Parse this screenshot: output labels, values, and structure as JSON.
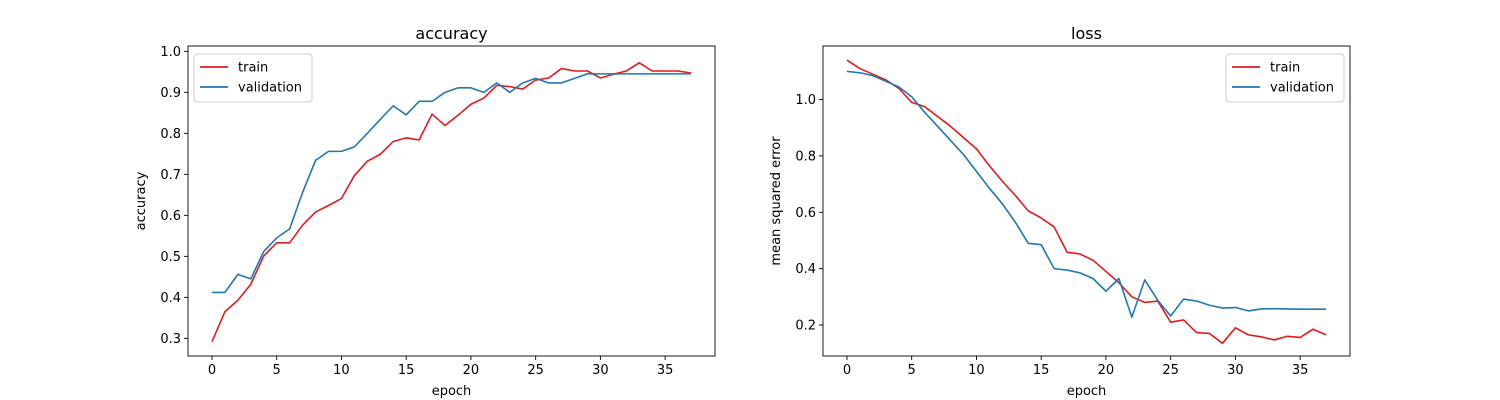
{
  "chart_data": [
    {
      "type": "line",
      "title": "accuracy",
      "xlabel": "epoch",
      "ylabel": "accuracy",
      "xlim": [
        -1.85,
        38.85
      ],
      "ylim": [
        0.257,
        1.013
      ],
      "xticks": [
        0,
        5,
        10,
        15,
        20,
        25,
        30,
        35
      ],
      "yticks": [
        0.3,
        0.4,
        0.5,
        0.6,
        0.7,
        0.8,
        0.9,
        1.0
      ],
      "ytick_labels": [
        "0.3",
        "0.4",
        "0.5",
        "0.6",
        "0.7",
        "0.8",
        "0.9",
        "1.0"
      ],
      "legend_loc": "upper-left",
      "series": [
        {
          "name": "train",
          "color": "#e31a1c",
          "values": [
            0.292,
            0.365,
            0.393,
            0.432,
            0.501,
            0.533,
            0.533,
            0.576,
            0.608,
            0.624,
            0.641,
            0.697,
            0.732,
            0.749,
            0.78,
            0.789,
            0.784,
            0.847,
            0.819,
            0.844,
            0.871,
            0.886,
            0.917,
            0.914,
            0.908,
            0.93,
            0.935,
            0.958,
            0.952,
            0.952,
            0.935,
            0.944,
            0.952,
            0.972,
            0.952,
            0.952,
            0.952,
            0.947
          ]
        },
        {
          "name": "validation",
          "color": "#1f77b4",
          "values": [
            0.412,
            0.412,
            0.456,
            0.445,
            0.512,
            0.545,
            0.567,
            0.656,
            0.734,
            0.756,
            0.756,
            0.767,
            0.8,
            0.834,
            0.867,
            0.845,
            0.878,
            0.878,
            0.9,
            0.911,
            0.911,
            0.9,
            0.923,
            0.9,
            0.923,
            0.934,
            0.923,
            0.923,
            0.934,
            0.945,
            0.945,
            0.945,
            0.945,
            0.945,
            0.945,
            0.945,
            0.945,
            0.945
          ]
        }
      ]
    },
    {
      "type": "line",
      "title": "loss",
      "xlabel": "epoch",
      "ylabel": "mean squared error",
      "xlim": [
        -1.85,
        38.85
      ],
      "ylim": [
        0.09,
        1.19
      ],
      "xticks": [
        0,
        5,
        10,
        15,
        20,
        25,
        30,
        35
      ],
      "yticks": [
        0.2,
        0.4,
        0.6,
        0.8,
        1.0
      ],
      "ytick_labels": [
        "0.2",
        "0.4",
        "0.6",
        "0.8",
        "1.0"
      ],
      "legend_loc": "upper-right",
      "series": [
        {
          "name": "train",
          "color": "#e31a1c",
          "values": [
            1.14,
            1.11,
            1.09,
            1.07,
            1.04,
            0.99,
            0.975,
            0.94,
            0.905,
            0.865,
            0.825,
            0.765,
            0.71,
            0.66,
            0.605,
            0.58,
            0.548,
            0.458,
            0.452,
            0.43,
            0.39,
            0.35,
            0.3,
            0.28,
            0.285,
            0.21,
            0.218,
            0.173,
            0.17,
            0.135,
            0.19,
            0.165,
            0.158,
            0.147,
            0.16,
            0.156,
            0.185,
            0.165
          ]
        },
        {
          "name": "validation",
          "color": "#1f77b4",
          "values": [
            1.1,
            1.095,
            1.085,
            1.065,
            1.045,
            1.01,
            0.955,
            0.905,
            0.855,
            0.805,
            0.745,
            0.685,
            0.63,
            0.565,
            0.49,
            0.485,
            0.4,
            0.395,
            0.385,
            0.365,
            0.32,
            0.365,
            0.228,
            0.36,
            0.288,
            0.232,
            0.292,
            0.285,
            0.27,
            0.26,
            0.262,
            0.25,
            0.257,
            0.258,
            0.257,
            0.256,
            0.256,
            0.256
          ]
        }
      ]
    }
  ]
}
